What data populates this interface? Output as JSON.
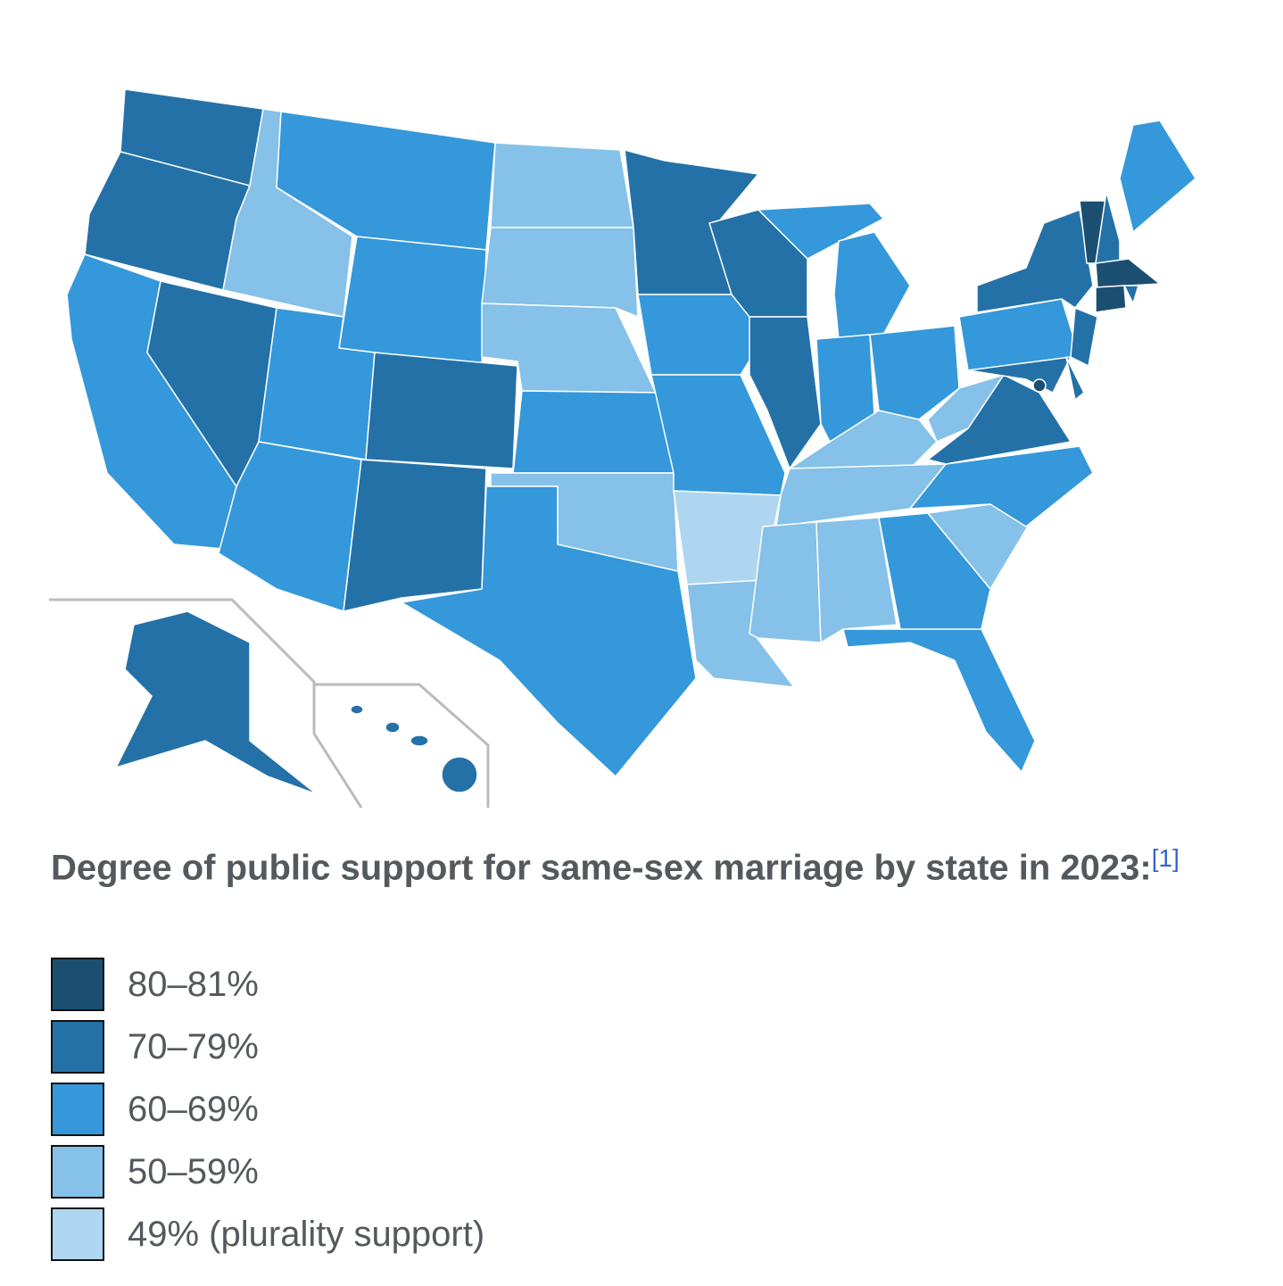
{
  "caption": {
    "text": "Degree of public support for same-sex marriage by state in 2023:",
    "reference": "[1]"
  },
  "legend": [
    {
      "label": "80–81%",
      "color": "#1b4f72"
    },
    {
      "label": "70–79%",
      "color": "#2471a8"
    },
    {
      "label": "60–69%",
      "color": "#3498db"
    },
    {
      "label": "50–59%",
      "color": "#85c1e9"
    },
    {
      "label": "49% (plurality support)",
      "color": "#aed6f1"
    }
  ]
}
